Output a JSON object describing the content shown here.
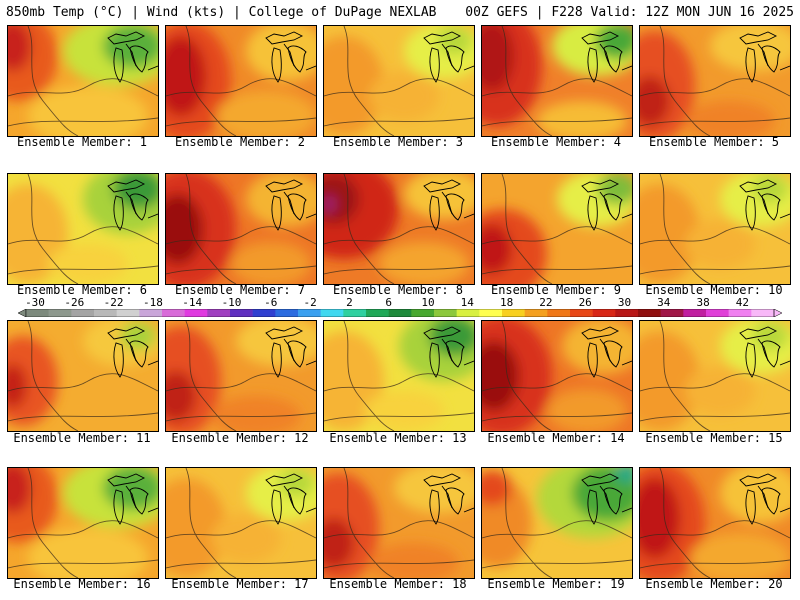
{
  "header": {
    "left": "850mb Temp (°C) | Wind (kts) | College of DuPage NEXLAB",
    "right": "00Z GEFS | F228 Valid: 12Z MON JUN 16 2025"
  },
  "members": [
    {
      "label": "Ensemble Member: 1",
      "scheme": "orange-w-red-ne-green"
    },
    {
      "label": "Ensemble Member: 2",
      "scheme": "red-west"
    },
    {
      "label": "Ensemble Member: 3",
      "scheme": "orange-yellow"
    },
    {
      "label": "Ensemble Member: 4",
      "scheme": "red-west-ne-green"
    },
    {
      "label": "Ensemble Member: 5",
      "scheme": "orange-red"
    },
    {
      "label": "Ensemble Member: 6",
      "scheme": "yellow-green"
    },
    {
      "label": "Ensemble Member: 7",
      "scheme": "red-west-dark"
    },
    {
      "label": "Ensemble Member: 8",
      "scheme": "red-west-magenta"
    },
    {
      "label": "Ensemble Member: 9",
      "scheme": "red-sw"
    },
    {
      "label": "Ensemble Member: 10",
      "scheme": "orange-yellow"
    },
    {
      "label": "Ensemble Member: 11",
      "scheme": "orange-red-west"
    },
    {
      "label": "Ensemble Member: 12",
      "scheme": "orange-red"
    },
    {
      "label": "Ensemble Member: 13",
      "scheme": "yellow-green"
    },
    {
      "label": "Ensemble Member: 14",
      "scheme": "red-west-dark"
    },
    {
      "label": "Ensemble Member: 15",
      "scheme": "orange-yellow"
    },
    {
      "label": "Ensemble Member: 16",
      "scheme": "orange-w-red-ne-green"
    },
    {
      "label": "Ensemble Member: 17",
      "scheme": "orange-yellow"
    },
    {
      "label": "Ensemble Member: 18",
      "scheme": "orange-red"
    },
    {
      "label": "Ensemble Member: 19",
      "scheme": "yellow-green-ne-teal"
    },
    {
      "label": "Ensemble Member: 20",
      "scheme": "red-west"
    }
  ],
  "colorbar": {
    "ticks": [
      "-30",
      "-26",
      "-22",
      "-18",
      "-14",
      "-10",
      "-6",
      "-2",
      "2",
      "6",
      "10",
      "14",
      "18",
      "22",
      "26",
      "30",
      "34",
      "38",
      "42"
    ],
    "colors": [
      "#7d8a7d",
      "#8e998e",
      "#a4a4a4",
      "#b8b8b8",
      "#d0d0d0",
      "#c9a6d9",
      "#d86bd8",
      "#e03ae0",
      "#a040c0",
      "#6030c0",
      "#3040d0",
      "#2c6ce0",
      "#3aa0f0",
      "#40d8f0",
      "#30d0a0",
      "#20a858",
      "#1f8a3c",
      "#48a830",
      "#8cc83c",
      "#d8f040",
      "#ffff50",
      "#f8d020",
      "#f4a020",
      "#f07818",
      "#e84818",
      "#d82818",
      "#b81818",
      "#901010",
      "#a01848",
      "#c020a0",
      "#e040d8",
      "#f080f0",
      "#f8b8f8"
    ]
  }
}
